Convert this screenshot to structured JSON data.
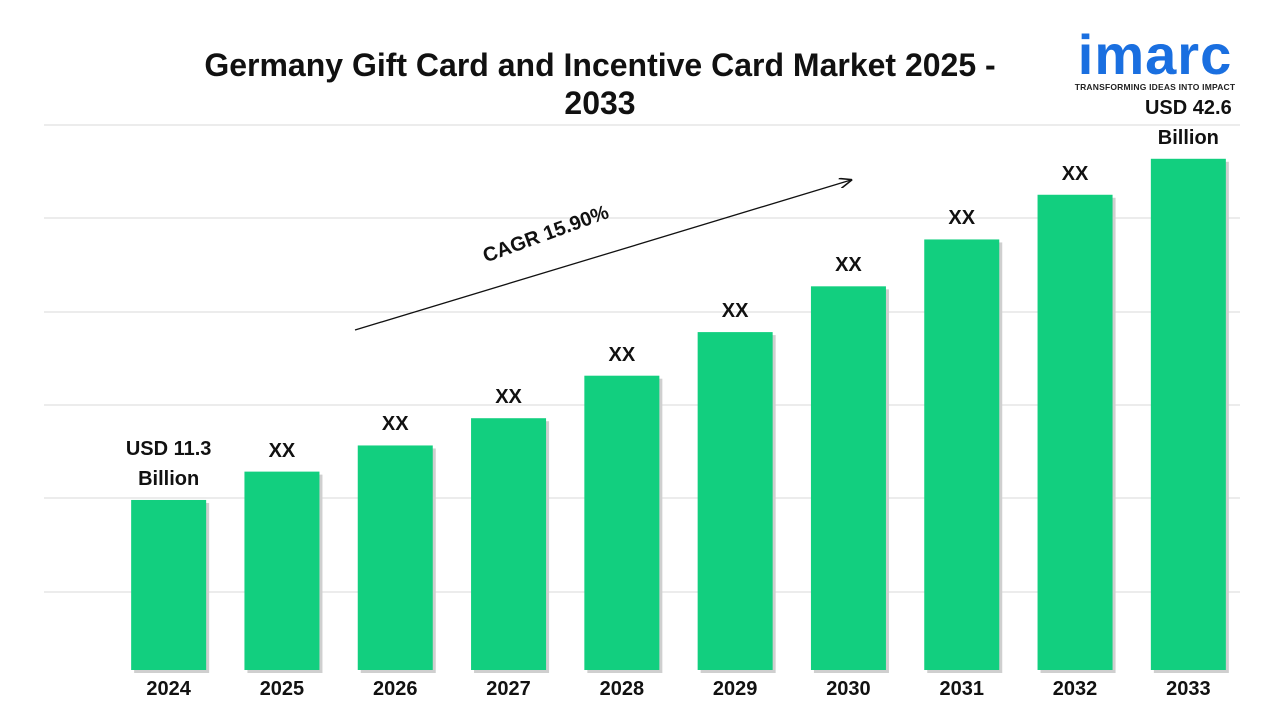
{
  "brand": {
    "name": "imarc",
    "tagline": "TRANSFORMING IDEAS INTO IMPACT"
  },
  "chart_data": {
    "type": "bar",
    "title": "Germany Gift Card and Incentive Card Market 2025 - 2033",
    "annotation": "CAGR 15.90%",
    "categories": [
      "2024",
      "2025",
      "2026",
      "2027",
      "2028",
      "2029",
      "2030",
      "2031",
      "2032",
      "2033"
    ],
    "values": [
      11.3,
      13.9,
      16.3,
      18.8,
      22.7,
      26.7,
      30.9,
      35.2,
      39.3,
      42.6
    ],
    "value_labels": [
      "USD 11.3 Billion",
      "XX",
      "XX",
      "XX",
      "XX",
      "XX",
      "XX",
      "XX",
      "XX",
      "USD 42.6 Billion"
    ],
    "color": "#12cf7f",
    "ylim": [
      -4.3,
      45.7
    ]
  }
}
